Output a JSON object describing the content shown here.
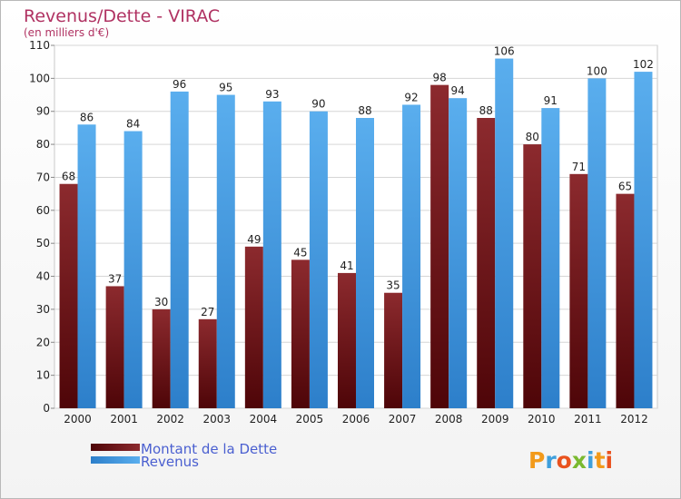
{
  "chart_data": {
    "type": "bar",
    "title": "Revenus/Dette - VIRAC",
    "subtitle": "(en milliers d'€)",
    "categories": [
      "2000",
      "2001",
      "2002",
      "2003",
      "2004",
      "2005",
      "2006",
      "2007",
      "2008",
      "2009",
      "2010",
      "2011",
      "2012"
    ],
    "series": [
      {
        "name": "Montant de la Dette",
        "color": "#7a1a1e",
        "values": [
          68,
          37,
          30,
          27,
          49,
          45,
          41,
          35,
          98,
          88,
          80,
          71,
          65
        ]
      },
      {
        "name": "Revenus",
        "color": "#4fa0e3",
        "values": [
          86,
          84,
          96,
          95,
          93,
          90,
          88,
          92,
          94,
          106,
          91,
          100,
          102
        ]
      }
    ],
    "ylim": [
      0,
      110
    ],
    "yticks": [
      0,
      10,
      20,
      30,
      40,
      50,
      60,
      70,
      80,
      90,
      100,
      110
    ],
    "grid": true,
    "legend_position": "bottom-left"
  },
  "logo": {
    "text": "Proxiti"
  }
}
